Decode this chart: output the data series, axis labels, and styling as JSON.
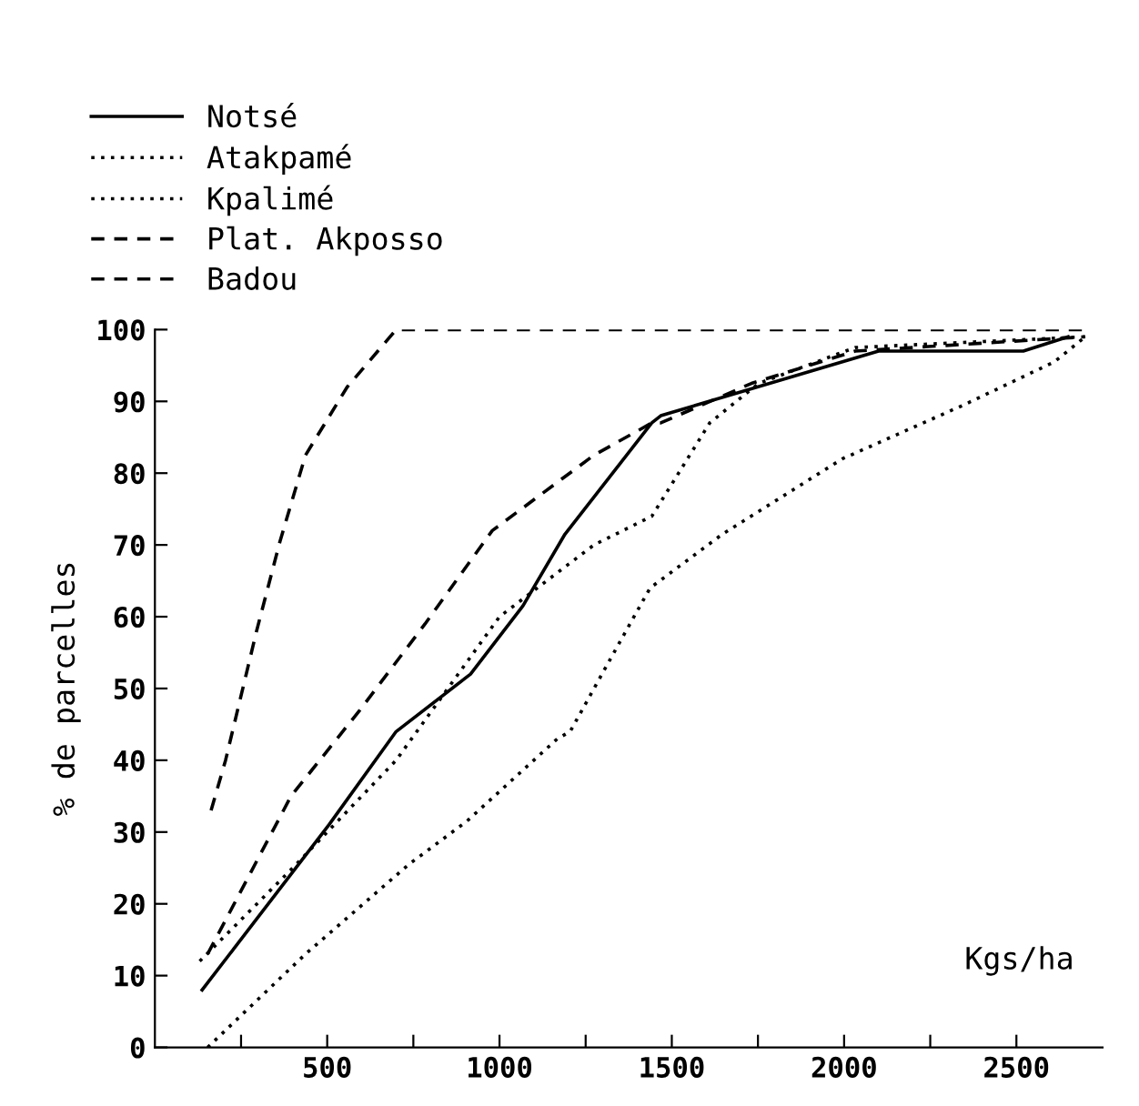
{
  "chart_data": {
    "type": "line",
    "xlabel": "Kgs/ha",
    "ylabel": "% de parcelles",
    "xlim": [
      0,
      2750
    ],
    "ylim": [
      0,
      100
    ],
    "xticks": [
      {
        "value": 250,
        "label": null
      },
      500,
      {
        "value": 750,
        "label": null
      },
      1000,
      {
        "value": 1250,
        "label": null
      },
      1500,
      {
        "value": 1750,
        "label": null
      },
      2000,
      {
        "value": 2250,
        "label": null
      },
      2500
    ],
    "yticks": [
      0,
      10,
      20,
      30,
      40,
      50,
      60,
      70,
      80,
      90,
      100
    ],
    "grid": false,
    "legend": "top left",
    "marker": "none",
    "series": [
      {
        "name": "Notsé",
        "color": "#000000",
        "line_style": "solid",
        "x": [
          137,
          505,
          700,
          916,
          1068,
          1190,
          1442,
          1468,
          2100,
          2520,
          2650
        ],
        "values": [
          8,
          31,
          44,
          52,
          61.5,
          71.5,
          87,
          88,
          97,
          97,
          99
        ]
      },
      {
        "name": "Atakpamé",
        "color": "#000000",
        "line_style": "dotted",
        "x": [
          130,
          400,
          700,
          1000,
          1274,
          1442,
          1468,
          1610,
          1752,
          2032,
          2700
        ],
        "values": [
          12,
          25,
          40,
          60,
          70,
          74,
          76,
          87,
          92.5,
          97.5,
          99
        ]
      },
      {
        "name": "Kpalimé",
        "color": "#000000",
        "line_style": "dotted",
        "x": [
          153,
          437,
          737,
          905,
          1168,
          1205,
          1332,
          1437,
          1647,
          1995,
          2347,
          2610,
          2700
        ],
        "values": [
          0,
          13,
          25.5,
          31.5,
          43,
          44,
          55,
          64,
          71.5,
          82,
          89.5,
          95.5,
          99
        ]
      },
      {
        "name": "Plat. Akposso",
        "color": "#000000",
        "line_style": "dashed",
        "x": [
          153,
          395,
          595,
          784,
          979,
          1274,
          1442,
          1468,
          1731,
          2032,
          2700
        ],
        "values": [
          13,
          35,
          47,
          59,
          72,
          82.5,
          87,
          87,
          92.5,
          97,
          99
        ]
      },
      {
        "name": "Badou",
        "color": "#000000",
        "line_style": "dashed",
        "x": [
          163,
          205,
          295,
          363,
          437,
          558,
          647,
          700,
          2700
        ],
        "values": [
          33,
          40,
          58,
          70.5,
          82.5,
          92,
          97,
          100,
          100
        ]
      }
    ]
  }
}
